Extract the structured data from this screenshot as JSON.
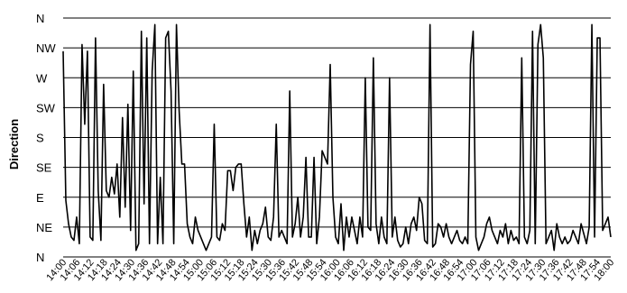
{
  "chart_data": {
    "type": "line",
    "title": "",
    "xlabel": "",
    "ylabel": "Direction",
    "yticks": [
      "N",
      "NE",
      "E",
      "SE",
      "S",
      "SW",
      "W",
      "NW",
      "N"
    ],
    "ylim": [
      0,
      360
    ],
    "grid": true,
    "legend": "none",
    "x_tick_labels": [
      "14:00",
      "14:06",
      "14:12",
      "14:18",
      "14:24",
      "14:30",
      "14:36",
      "14:42",
      "14:48",
      "14:54",
      "15:00",
      "15:06",
      "15:12",
      "15:18",
      "15:24",
      "15:30",
      "15:36",
      "15:42",
      "15:48",
      "15:54",
      "16:00",
      "16:06",
      "16:12",
      "16:18",
      "16:24",
      "16:30",
      "16:36",
      "16:42",
      "16:48",
      "16:54",
      "17:00",
      "17:06",
      "17:12",
      "17:18",
      "17:24",
      "17:30",
      "17:36",
      "17:42",
      "17:48",
      "17:54",
      "18:00"
    ],
    "series": [
      {
        "values": [
          310,
          85,
          50,
          30,
          25,
          60,
          20,
          320,
          200,
          310,
          30,
          25,
          330,
          100,
          25,
          260,
          100,
          90,
          120,
          95,
          140,
          60,
          210,
          75,
          230,
          40,
          280,
          10,
          20,
          340,
          80,
          330,
          20,
          280,
          350,
          20,
          120,
          20,
          330,
          340,
          250,
          20,
          350,
          220,
          140,
          140,
          50,
          30,
          20,
          60,
          40,
          30,
          20,
          10,
          20,
          30,
          200,
          30,
          25,
          50,
          40,
          130,
          130,
          100,
          135,
          140,
          140,
          80,
          30,
          60,
          10,
          40,
          20,
          40,
          50,
          75,
          30,
          25,
          60,
          200,
          30,
          40,
          30,
          20,
          250,
          30,
          50,
          90,
          30,
          60,
          150,
          30,
          30,
          150,
          20,
          60,
          160,
          150,
          140,
          290,
          90,
          30,
          20,
          80,
          10,
          60,
          30,
          60,
          40,
          20,
          60,
          30,
          270,
          45,
          40,
          300,
          50,
          20,
          60,
          30,
          20,
          270,
          30,
          60,
          25,
          15,
          20,
          45,
          20,
          50,
          60,
          40,
          90,
          80,
          25,
          20,
          350,
          15,
          20,
          50,
          45,
          30,
          50,
          30,
          20,
          30,
          40,
          25,
          20,
          30,
          20,
          290,
          340,
          30,
          10,
          20,
          30,
          50,
          60,
          40,
          30,
          20,
          40,
          30,
          50,
          20,
          40,
          25,
          30,
          20,
          300,
          30,
          20,
          40,
          340,
          20,
          320,
          350,
          300,
          20,
          30,
          40,
          10,
          50,
          30,
          20,
          30,
          20,
          25,
          40,
          30,
          20,
          50,
          35,
          20,
          45,
          350,
          30,
          330,
          330,
          40,
          50,
          60,
          30
        ]
      }
    ]
  }
}
